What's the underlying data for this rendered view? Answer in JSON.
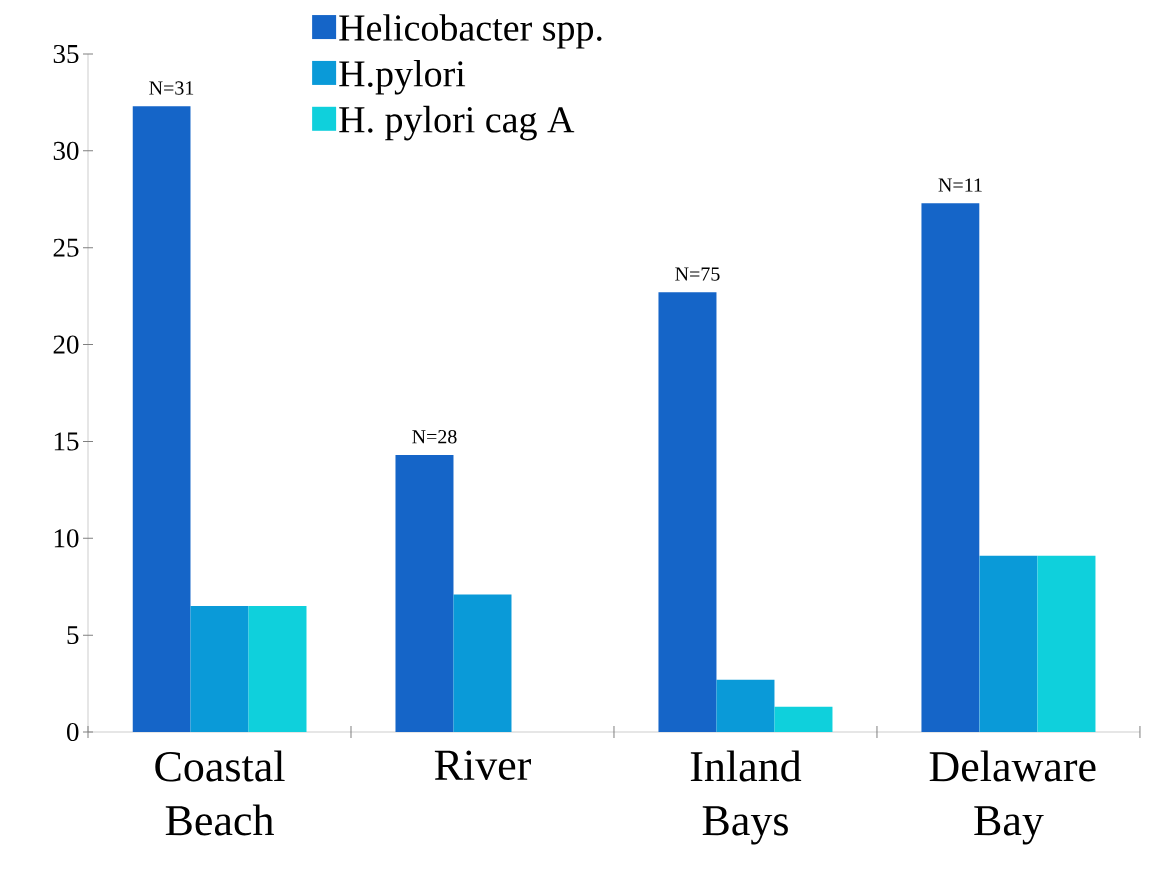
{
  "chart_data": {
    "type": "bar",
    "categories": [
      "Coastal Beach",
      "River",
      "Inland Bays",
      "Delaware Bay"
    ],
    "series": [
      {
        "name": "Helicobacter spp.",
        "color": "#1565c8",
        "values": [
          32.3,
          14.3,
          22.7,
          27.3
        ]
      },
      {
        "name": "H.pylori",
        "color": "#0a9ad8",
        "values": [
          6.5,
          7.1,
          2.7,
          9.1
        ]
      },
      {
        "name": "H. pylori cag A",
        "color": "#0fd0dc",
        "values": [
          6.5,
          0,
          1.3,
          9.1
        ]
      }
    ],
    "ylim": [
      0,
      35
    ],
    "yticks": [
      0,
      5,
      10,
      15,
      20,
      25,
      30,
      35
    ],
    "annotations": [
      "N=31",
      "N=28",
      "N=75",
      "N=11"
    ],
    "grid": false,
    "legend": "top"
  }
}
